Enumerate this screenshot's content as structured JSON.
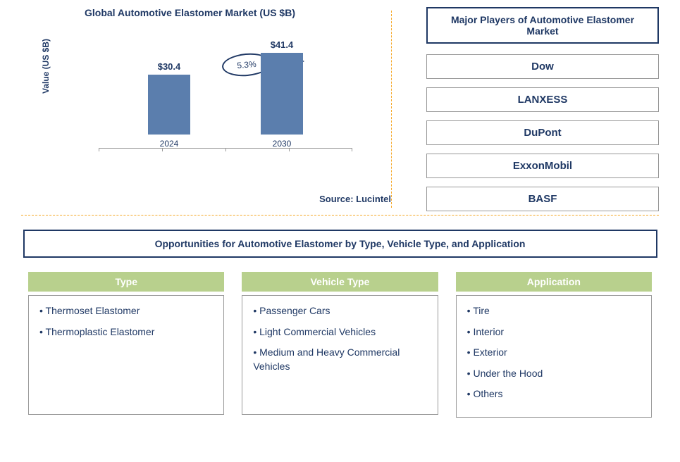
{
  "chart": {
    "title": "Global Automotive Elastomer Market (US $B)",
    "ylabel": "Value (US $B)",
    "type": "bar",
    "bars": [
      {
        "label": "2024",
        "value": 30.4,
        "display": "$30.4"
      },
      {
        "label": "2030",
        "value": 41.4,
        "display": "$41.4"
      }
    ],
    "growth_rate": "5.3%",
    "bar_color": "#5b7ead",
    "text_color": "#1f3864",
    "max_value": 50,
    "source": "Source: Lucintel"
  },
  "players": {
    "title": "Major Players of Automotive Elastomer Market",
    "list": [
      "Dow",
      "LANXESS",
      "DuPont",
      "ExxonMobil",
      "BASF"
    ]
  },
  "opportunities": {
    "title": "Opportunities for Automotive Elastomer by Type, Vehicle Type, and Application",
    "categories": [
      {
        "name": "Type",
        "items": [
          "Thermoset Elastomer",
          "Thermoplastic Elastomer"
        ]
      },
      {
        "name": "Vehicle Type",
        "items": [
          "Passenger Cars",
          "Light Commercial Vehicles",
          "Medium and Heavy Commercial Vehicles"
        ]
      },
      {
        "name": "Application",
        "items": [
          "Tire",
          "Interior",
          "Exterior",
          "Under the Hood",
          "Others"
        ]
      }
    ],
    "header_bg": "#b8d08d"
  }
}
